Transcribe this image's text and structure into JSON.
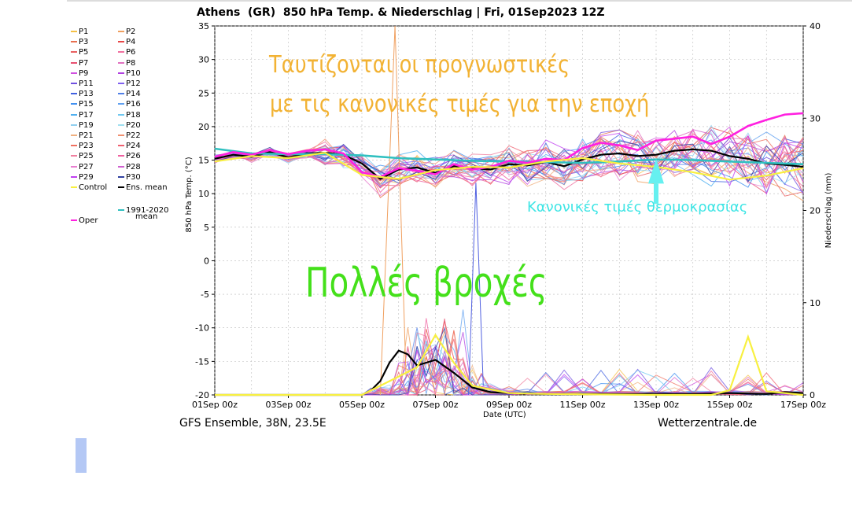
{
  "header": {
    "title": "Athens  (GR)  850 hPa Temp. & Niederschlag | Fri, 01Sep2023 12Z"
  },
  "footer": {
    "left": "GFS Ensemble, 38N, 23.5E",
    "right": "Wetterzentrale.de"
  },
  "annotations": {
    "line1": "Ταυτίζονται οι προγνωστικές",
    "line2": "με τις κανονικές τιμές για την εποχή",
    "normal_temps": "Κανονικές τιμές θερμοκρασίας",
    "rain": "Πολλές βροχές"
  },
  "legend": [
    {
      "label": "P1",
      "color": "#f5c045"
    },
    {
      "label": "P2",
      "color": "#f0a060"
    },
    {
      "label": "P3",
      "color": "#e87050"
    },
    {
      "label": "P4",
      "color": "#e84848"
    },
    {
      "label": "P5",
      "color": "#e86060"
    },
    {
      "label": "P6",
      "color": "#f070a0"
    },
    {
      "label": "P7",
      "color": "#e85070"
    },
    {
      "label": "P8",
      "color": "#e070c0"
    },
    {
      "label": "P9",
      "color": "#d050e0"
    },
    {
      "label": "P10",
      "color": "#b040e0"
    },
    {
      "label": "P11",
      "color": "#7050e0"
    },
    {
      "label": "P12",
      "color": "#8060f0"
    },
    {
      "label": "P13",
      "color": "#4060e0"
    },
    {
      "label": "P14",
      "color": "#5080e8"
    },
    {
      "label": "P15",
      "color": "#4090f0"
    },
    {
      "label": "P16",
      "color": "#60a0f0"
    },
    {
      "label": "P17",
      "color": "#50b0f0"
    },
    {
      "label": "P18",
      "color": "#70c8f0"
    },
    {
      "label": "P19",
      "color": "#90d0f0"
    },
    {
      "label": "P20",
      "color": "#a0e0f0"
    },
    {
      "label": "P21",
      "color": "#f0b080"
    },
    {
      "label": "P22",
      "color": "#f09070"
    },
    {
      "label": "P23",
      "color": "#f07060"
    },
    {
      "label": "P24",
      "color": "#f06070"
    },
    {
      "label": "P25",
      "color": "#f080a0"
    },
    {
      "label": "P26",
      "color": "#f060a0"
    },
    {
      "label": "P27",
      "color": "#e880d0"
    },
    {
      "label": "P28",
      "color": "#d060d0"
    },
    {
      "label": "P29",
      "color": "#c040f0"
    },
    {
      "label": "P30",
      "color": "#3040a0"
    },
    {
      "label": "Control",
      "color": "#f8f040"
    },
    {
      "label": "Ens. mean",
      "color": "#000000"
    },
    {
      "label": "1991-2020 mean",
      "color": "#30c0c0"
    },
    {
      "label": "Oper",
      "color": "#ff20e0"
    }
  ],
  "chart_data": {
    "type": "line",
    "title": "Athens  (GR)  850 hPa Temp. & Niederschlag | Fri, 01Sep2023 12Z",
    "xlabel": "Date (UTC)",
    "ylabel": "850 hPa Temp. (°C)",
    "y2label": "Niederschlag (mm)",
    "ylim": [
      -20,
      35
    ],
    "y2lim": [
      0,
      40
    ],
    "x_ticks": [
      "01Sep 00z",
      "03Sep 00z",
      "05Sep 00z",
      "07Sep 00z",
      "09Sep 00z",
      "11Sep 00z",
      "13Sep 00z",
      "15Sep 00z",
      "17Sep 00z"
    ],
    "x_range_days": [
      0,
      16
    ],
    "y_ticks": [
      35,
      30,
      25,
      20,
      15,
      10,
      5,
      0,
      -5,
      -10,
      -15,
      -20
    ],
    "y2_ticks": [
      40,
      30,
      20,
      10,
      0
    ],
    "grid": true,
    "legend_position": "left",
    "series": [
      {
        "name": "Ens. mean",
        "axis": "temp",
        "color": "#000000",
        "x": [
          0,
          0.5,
          1,
          1.5,
          2,
          2.5,
          3,
          3.5,
          4,
          4.5,
          5,
          5.5,
          6,
          6.5,
          7,
          7.5,
          8,
          8.5,
          9,
          9.5,
          10,
          10.5,
          11,
          11.5,
          12,
          12.5,
          13,
          13.5,
          14,
          14.5,
          15,
          15.5,
          16
        ],
        "values": [
          15.2,
          15.8,
          15.5,
          16.2,
          15.4,
          16.0,
          16.1,
          15.8,
          14.5,
          12.2,
          13.6,
          13.9,
          13.1,
          14.1,
          13.8,
          13.6,
          14.4,
          14.2,
          14.7,
          14.1,
          15.1,
          15.8,
          16.0,
          15.6,
          15.8,
          16.4,
          16.6,
          16.4,
          15.6,
          15.2,
          14.5,
          14.3,
          14.0
        ]
      },
      {
        "name": "1991-2020 mean",
        "axis": "temp",
        "color": "#30c0c0",
        "x": [
          0,
          1,
          2,
          3,
          4,
          5,
          6,
          7,
          8,
          9,
          10,
          11,
          12,
          13,
          14,
          15,
          16
        ],
        "values": [
          16.7,
          16.0,
          15.9,
          15.9,
          15.7,
          15.3,
          15.1,
          14.9,
          14.8,
          14.7,
          14.6,
          14.8,
          15.1,
          15.0,
          14.8,
          14.6,
          14.4
        ]
      },
      {
        "name": "Oper",
        "axis": "temp",
        "color": "#ff20e0",
        "x": [
          0,
          0.5,
          1,
          1.5,
          2,
          2.5,
          3,
          3.5,
          4,
          4.5,
          5,
          5.5,
          6,
          6.5,
          7,
          7.5,
          8,
          8.5,
          9,
          9.5,
          10,
          10.5,
          11,
          11.5,
          12,
          12.5,
          13,
          13.5,
          14,
          14.5,
          15,
          15.5,
          16
        ],
        "values": [
          15.5,
          16.2,
          15.8,
          16.5,
          15.9,
          16.4,
          16.6,
          16.0,
          13.2,
          12.5,
          13.8,
          13.4,
          12.9,
          14.4,
          13.6,
          14.0,
          14.9,
          14.6,
          15.2,
          15.0,
          16.8,
          17.6,
          17.2,
          16.5,
          17.9,
          18.2,
          18.5,
          17.4,
          18.5,
          20.1,
          21.0,
          21.8,
          22.0
        ]
      },
      {
        "name": "Control",
        "axis": "temp",
        "color": "#f8f040",
        "x": [
          0,
          1,
          2,
          3,
          4,
          5,
          6,
          7,
          8,
          9,
          10,
          11,
          12,
          13,
          14,
          15,
          16
        ],
        "values": [
          14.8,
          15.6,
          15.3,
          16.1,
          12.8,
          12.2,
          13.5,
          14.0,
          13.9,
          14.8,
          15.3,
          14.5,
          14.0,
          13.2,
          12.1,
          12.7,
          13.8
        ]
      },
      {
        "name": "Ens. mean precip",
        "axis": "precip",
        "color": "#000000",
        "x": [
          0,
          1,
          2,
          3,
          4,
          4.25,
          4.5,
          4.75,
          5,
          5.25,
          5.5,
          5.75,
          6,
          6.25,
          6.5,
          6.75,
          7,
          7.5,
          8,
          9,
          10,
          11,
          12,
          13,
          14,
          15,
          15.5,
          16
        ],
        "values": [
          0,
          0,
          0,
          0,
          0,
          0.5,
          1.5,
          3.5,
          4.8,
          4.4,
          3.2,
          3.5,
          3.8,
          3.1,
          2.4,
          1.6,
          0.8,
          0.3,
          0.2,
          0.1,
          0.1,
          0.1,
          0.1,
          0.1,
          0.2,
          0.1,
          0.3,
          0.2
        ]
      },
      {
        "name": "Control precip",
        "axis": "precip",
        "color": "#f8f040",
        "x": [
          0,
          4,
          5,
          5.5,
          6,
          6.5,
          7,
          8,
          9,
          12,
          13.5,
          14,
          14.5,
          15,
          16
        ],
        "values": [
          0,
          0,
          2,
          3,
          6.5,
          3.5,
          1,
          0.2,
          0.1,
          0,
          0,
          0.5,
          6.3,
          0.4,
          0
        ]
      }
    ]
  }
}
